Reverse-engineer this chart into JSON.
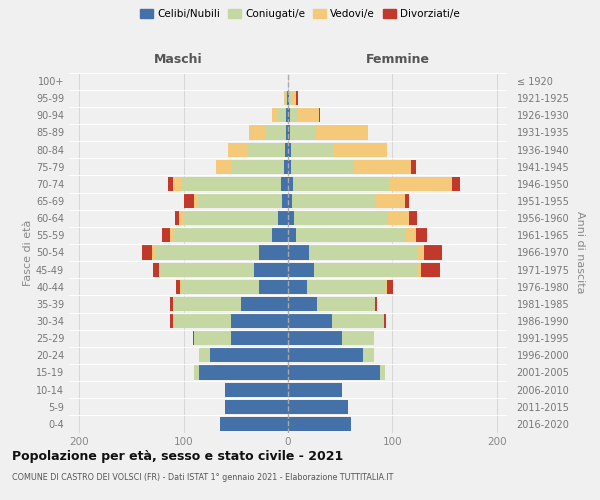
{
  "age_groups": [
    "0-4",
    "5-9",
    "10-14",
    "15-19",
    "20-24",
    "25-29",
    "30-34",
    "35-39",
    "40-44",
    "45-49",
    "50-54",
    "55-59",
    "60-64",
    "65-69",
    "70-74",
    "75-79",
    "80-84",
    "85-89",
    "90-94",
    "95-99",
    "100+"
  ],
  "birth_years": [
    "2016-2020",
    "2011-2015",
    "2006-2010",
    "2001-2005",
    "1996-2000",
    "1991-1995",
    "1986-1990",
    "1981-1985",
    "1976-1980",
    "1971-1975",
    "1966-1970",
    "1961-1965",
    "1956-1960",
    "1951-1955",
    "1946-1950",
    "1941-1945",
    "1936-1940",
    "1931-1935",
    "1926-1930",
    "1921-1925",
    "≤ 1920"
  ],
  "maschi": {
    "celibi": [
      65,
      60,
      60,
      85,
      75,
      55,
      55,
      45,
      28,
      33,
      28,
      15,
      10,
      6,
      7,
      4,
      3,
      2,
      2,
      1,
      0
    ],
    "coniugati": [
      0,
      0,
      0,
      5,
      10,
      35,
      55,
      65,
      75,
      90,
      100,
      95,
      90,
      80,
      95,
      50,
      35,
      20,
      8,
      2,
      0
    ],
    "vedovi": [
      0,
      0,
      0,
      0,
      0,
      0,
      0,
      0,
      1,
      1,
      2,
      3,
      5,
      4,
      8,
      15,
      20,
      15,
      5,
      1,
      0
    ],
    "divorziati": [
      0,
      0,
      0,
      0,
      0,
      1,
      3,
      3,
      3,
      5,
      10,
      8,
      3,
      10,
      5,
      0,
      0,
      0,
      0,
      0,
      0
    ]
  },
  "femmine": {
    "nubili": [
      60,
      58,
      52,
      88,
      72,
      52,
      42,
      28,
      18,
      25,
      20,
      8,
      6,
      4,
      5,
      3,
      3,
      2,
      2,
      1,
      0
    ],
    "coniugate": [
      0,
      0,
      0,
      5,
      10,
      30,
      50,
      55,
      75,
      100,
      105,
      105,
      90,
      80,
      92,
      60,
      40,
      25,
      8,
      2,
      0
    ],
    "vedove": [
      0,
      0,
      0,
      0,
      0,
      0,
      0,
      0,
      2,
      3,
      5,
      10,
      20,
      28,
      60,
      55,
      52,
      50,
      20,
      5,
      0
    ],
    "divorziate": [
      0,
      0,
      0,
      0,
      0,
      0,
      2,
      2,
      6,
      18,
      18,
      10,
      8,
      4,
      8,
      5,
      0,
      0,
      1,
      2,
      0
    ]
  },
  "colors": {
    "celibi": "#4472a8",
    "coniugati": "#c5d8a4",
    "vedovi": "#f5c97a",
    "divorziati": "#c0392b"
  },
  "bg_color": "#f0f0f0",
  "xlim": 210,
  "xticks": [
    -200,
    -100,
    0,
    100,
    200
  ],
  "xtick_labels": [
    "200",
    "100",
    "0",
    "100",
    "200"
  ],
  "title": "Popolazione per età, sesso e stato civile - 2021",
  "subtitle": "COMUNE DI CASTRO DEI VOLSCI (FR) - Dati ISTAT 1° gennaio 2021 - Elaborazione TUTTITALIA.IT",
  "ylabel_left": "Fasce di età",
  "ylabel_right": "Anni di nascita",
  "header_maschi": "Maschi",
  "header_femmine": "Femmine",
  "legend_labels": [
    "Celibi/Nubili",
    "Coniugati/e",
    "Vedovi/e",
    "Divorziati/e"
  ]
}
